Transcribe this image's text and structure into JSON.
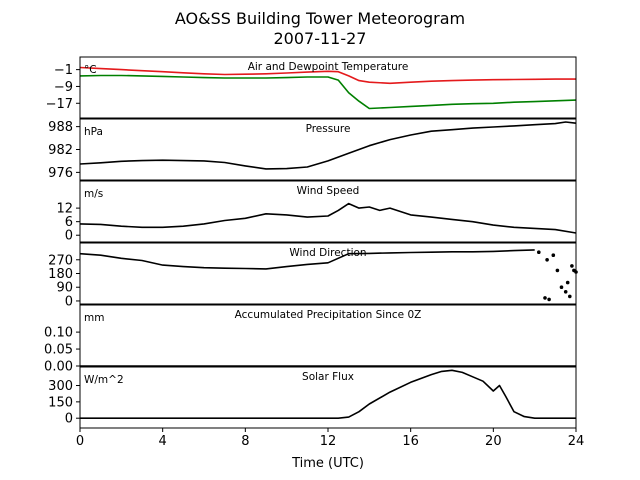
{
  "figure": {
    "title": "AO&SS Building Tower Meteorogram",
    "subtitle": "2007-11-27",
    "xlabel": "Time (UTC)"
  },
  "colors": {
    "temperature": "#e41a1c",
    "dewpoint": "#008000",
    "line": "#000000"
  },
  "chart_data": [
    {
      "id": "temperature",
      "type": "line",
      "title": "Air and Dewpoint Temperature",
      "unit_label": "°C",
      "xlim": [
        0,
        24
      ],
      "ylim": [
        -24,
        5
      ],
      "yticks": [
        -1,
        -9,
        -17
      ],
      "ytick_labels": [
        "−1",
        "−9",
        "−17"
      ],
      "series": [
        {
          "key": "air",
          "color": "#e41a1c",
          "x": [
            0,
            1,
            2,
            3,
            4,
            5,
            6,
            7,
            8,
            9,
            10,
            11,
            12,
            12.5,
            13,
            13.5,
            14,
            15,
            16,
            17,
            18,
            19,
            20,
            21,
            22,
            23,
            24
          ],
          "values": [
            0,
            -0.5,
            -1,
            -1.5,
            -2,
            -2.5,
            -3,
            -3.3,
            -3.2,
            -3,
            -2.6,
            -2.2,
            -1.8,
            -2,
            -4,
            -6.2,
            -7,
            -7.5,
            -7,
            -6.5,
            -6.2,
            -6,
            -5.8,
            -5.7,
            -5.6,
            -5.5,
            -5.5
          ]
        },
        {
          "key": "dewpoint",
          "color": "#008000",
          "x": [
            0,
            1,
            2,
            3,
            4,
            5,
            6,
            7,
            8,
            9,
            10,
            11,
            12,
            12.5,
            13,
            13.5,
            14,
            15,
            16,
            17,
            18,
            19,
            20,
            21,
            22,
            23,
            24
          ],
          "values": [
            -4,
            -3.8,
            -3.8,
            -4,
            -4.2,
            -4.5,
            -4.8,
            -5,
            -5,
            -5,
            -4.8,
            -4.5,
            -4.5,
            -6,
            -12,
            -16,
            -19.5,
            -19,
            -18.5,
            -18,
            -17.5,
            -17.2,
            -17,
            -16.5,
            -16.2,
            -15.8,
            -15.5
          ]
        }
      ]
    },
    {
      "id": "pressure",
      "type": "line",
      "title": "Pressure",
      "unit_label": "hPa",
      "xlim": [
        0,
        24
      ],
      "ylim": [
        974,
        990
      ],
      "yticks": [
        976,
        982,
        988
      ],
      "ytick_labels": [
        "976",
        "982",
        "988"
      ],
      "series": [
        {
          "key": "pressure",
          "color": "#000000",
          "x": [
            0,
            1,
            2,
            3,
            4,
            5,
            6,
            7,
            8,
            9,
            10,
            11,
            12,
            13,
            14,
            15,
            16,
            17,
            18,
            19,
            20,
            21,
            22,
            23,
            23.5,
            24
          ],
          "values": [
            978.2,
            978.5,
            978.9,
            979.1,
            979.2,
            979.1,
            979.0,
            978.6,
            977.7,
            976.9,
            977.0,
            977.4,
            979.0,
            981.0,
            983.0,
            984.6,
            985.8,
            986.8,
            987.2,
            987.6,
            987.9,
            988.2,
            988.5,
            988.8,
            989.2,
            988.9
          ]
        }
      ]
    },
    {
      "id": "wind_speed",
      "type": "line",
      "title": "Wind Speed",
      "unit_label": "m/s",
      "xlim": [
        0,
        24
      ],
      "ylim": [
        -3,
        24
      ],
      "yticks": [
        0,
        6,
        12
      ],
      "ytick_labels": [
        "0",
        "6",
        "12"
      ],
      "series": [
        {
          "key": "speed",
          "color": "#000000",
          "x": [
            0,
            1,
            2,
            3,
            4,
            5,
            6,
            7,
            8,
            9,
            10,
            11,
            12,
            12.5,
            13,
            13.5,
            14,
            14.5,
            15,
            16,
            17,
            18,
            19,
            20,
            21,
            22,
            23,
            24
          ],
          "values": [
            5,
            4.8,
            4,
            3.5,
            3.5,
            4,
            5,
            6.5,
            7.5,
            9.5,
            9,
            8,
            8.5,
            11,
            14,
            12,
            12.5,
            11,
            12,
            9,
            8,
            7,
            6,
            4.5,
            3.5,
            3,
            2.5,
            1
          ]
        }
      ]
    },
    {
      "id": "wind_direction",
      "type": "line",
      "title": "Wind Direction",
      "unit_label": "",
      "xlim": [
        0,
        24
      ],
      "ylim": [
        -20,
        380
      ],
      "yticks": [
        0,
        90,
        180,
        270
      ],
      "ytick_labels": [
        "0",
        "90",
        "180",
        "270"
      ],
      "series": [
        {
          "key": "direction",
          "color": "#000000",
          "x": [
            0,
            1,
            2,
            3,
            4,
            5,
            6,
            7,
            8,
            9,
            10,
            11,
            12,
            13,
            14,
            15,
            16,
            17,
            18,
            19,
            20,
            21,
            22
          ],
          "values": [
            310,
            300,
            280,
            265,
            235,
            225,
            218,
            215,
            213,
            210,
            225,
            240,
            250,
            310,
            312,
            315,
            318,
            320,
            322,
            322,
            325,
            330,
            335
          ]
        }
      ],
      "scatter": {
        "key": "direction_late",
        "x": [
          22.2,
          22.5,
          22.7,
          22.9,
          23.1,
          23.3,
          23.5,
          23.6,
          23.8,
          23.9,
          24.0,
          22.6,
          23.7
        ],
        "values": [
          320,
          20,
          10,
          300,
          200,
          90,
          60,
          120,
          230,
          200,
          190,
          270,
          30
        ]
      }
    },
    {
      "id": "precipitation",
      "type": "line",
      "title": "Accumulated Precipitation Since 0Z",
      "unit_label": "mm",
      "xlim": [
        0,
        24
      ],
      "ylim": [
        0,
        0.18
      ],
      "yticks": [
        0,
        0.05,
        0.1
      ],
      "ytick_labels": [
        "0.00",
        "0.05",
        "0.10"
      ],
      "series": [
        {
          "key": "precip",
          "color": "#000000",
          "x": [
            0,
            24
          ],
          "values": [
            0,
            0
          ]
        }
      ]
    },
    {
      "id": "solar_flux",
      "type": "line",
      "title": "Solar Flux",
      "unit_label": "W/m^2",
      "xlim": [
        0,
        24
      ],
      "ylim": [
        -90,
        470
      ],
      "yticks": [
        0,
        150,
        300
      ],
      "ytick_labels": [
        "0",
        "150",
        "300"
      ],
      "series": [
        {
          "key": "flux",
          "color": "#000000",
          "x": [
            0,
            12.5,
            13,
            13.5,
            14,
            15,
            16,
            17,
            17.5,
            18,
            18.5,
            19,
            19.5,
            20,
            20.3,
            20.6,
            21,
            21.5,
            22,
            24
          ],
          "values": [
            0,
            0,
            10,
            60,
            130,
            240,
            330,
            400,
            430,
            440,
            420,
            380,
            340,
            250,
            300,
            200,
            60,
            15,
            0,
            0
          ]
        }
      ]
    }
  ],
  "xaxis": {
    "ticks": [
      0,
      4,
      8,
      12,
      16,
      20,
      24
    ],
    "tick_labels": [
      "0",
      "4",
      "8",
      "12",
      "16",
      "20",
      "24"
    ]
  }
}
